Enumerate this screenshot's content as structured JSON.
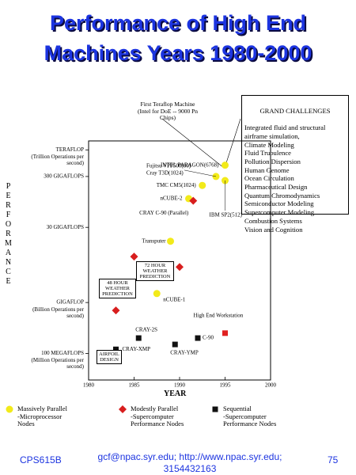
{
  "chart_data": {
    "type": "scatter",
    "title": "Performance of High End Machines Years 1980-2000",
    "x_label": "YEAR",
    "y_label": "PERFORMANCE",
    "log_y": true,
    "xlim": [
      1980,
      2000
    ],
    "xticks": [
      1980,
      1985,
      1990,
      1995,
      2000
    ],
    "ylim": [
      0.03,
      1500
    ],
    "yticks": [
      {
        "value": 0.1,
        "label": "100 MEGAFLOPS"
      },
      {
        "value": 1,
        "label": "GIGAFLOP"
      },
      {
        "value": 30,
        "label": "30 GIGAFLOPS"
      },
      {
        "value": 300,
        "label": "300 GIGAFLOPS"
      },
      {
        "value": 1000,
        "label": "TERAFLOP"
      }
    ],
    "ytick_notes": [
      "(Million Operations per second)",
      "(Billion Operations per second)",
      "(Trillion Operations per second)"
    ],
    "series": [
      {
        "name": "Massively Parallel\n-Microprocessor\nNodes",
        "color": "#f2ea1a",
        "marker": "circle",
        "x": [
          1995,
          1994,
          1995,
          1992.5,
          1991,
          1989,
          1987.5
        ],
        "values": [
          500,
          300,
          250,
          200,
          110,
          16,
          1.5
        ]
      },
      {
        "name": "Modestly Parallel\n-Supercomputer\nPerformance Nodes",
        "color": "#d81e1e",
        "marker": "diamond",
        "x": [
          1991.5,
          1985,
          1990,
          1983
        ],
        "values": [
          100,
          8,
          5,
          0.7
        ]
      },
      {
        "name": "Sequential\n-Supercomputer\nPerformance Nodes",
        "color": "#111111",
        "marker": "square",
        "x": [
          1985.5,
          1992,
          1983,
          1989.5
        ],
        "values": [
          0.2,
          0.2,
          0.12,
          0.15
        ]
      },
      {
        "color": "#e02020",
        "marker": "square",
        "x": [
          1995
        ],
        "values": [
          0.25
        ]
      }
    ],
    "point_labels": [
      "INTEL PARAGON(6768)",
      "Fujitsu VPP500(80)",
      "Cray T3D(1024)",
      "TMC CM5(1024)",
      "nCUBE-2",
      "CRAY C-90 (Parallel)",
      "IBM SP2(512)",
      "Transputer",
      "nCUBE-1",
      "High End Workstation",
      "CRAY-2S",
      "C-90",
      "CRAY-XMP",
      "CRAY-YMP"
    ],
    "callouts": [
      "First Teraflop Machine\n(Intel for DoE -- 9000 Pn\nChips)",
      "72 HOUR\nWEATHER\nPREDICTION",
      "48 HOUR\nWEATHER\nPREDICTION",
      "AIRFOIL\nDESIGN"
    ],
    "grand_challenges": {
      "title": "GRAND CHALLENGES",
      "items": [
        "Integrated fluid and structural airframe simulation,",
        "Climate Modeling",
        "Fluid Trubulence",
        "Pollution Dispersion",
        "Human Genome",
        "Ocean Circulation",
        "Pharmaceutical Design",
        "Quantum Chromodynamics",
        " Semiconductor Modeling",
        "Supercomputer Modeling",
        "Combustion Systems",
        "Vision and Cognition"
      ]
    }
  },
  "footer": {
    "left": "CPS615B",
    "center": "gcf@npac.syr.edu; http://www.npac.syr.edu;\n3154432163",
    "right": "75"
  }
}
